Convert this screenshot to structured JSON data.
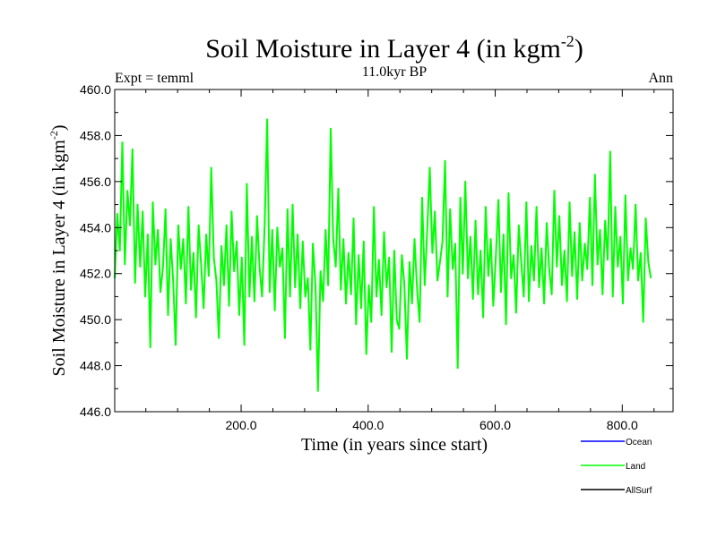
{
  "chart_data": {
    "type": "line",
    "title": "Soil Moisture in Layer 4 (in kgm",
    "title_sup": "-2",
    "title_end": ")",
    "subtitle": "11.0kyr BP",
    "left_label": "Expt = temml",
    "right_label": "Ann",
    "xlabel": "Time (in years since start)",
    "ylabel": "Soil Moisture in Layer 4 (in kgm",
    "ylabel_sup": "-2",
    "ylabel_end": ")",
    "xlim": [
      1,
      880
    ],
    "ylim": [
      446.0,
      460.0
    ],
    "x_ticks": [
      200,
      400,
      600,
      800
    ],
    "x_tick_labels": [
      "200.0",
      "400.0",
      "600.0",
      "800.0"
    ],
    "y_ticks": [
      446,
      448,
      450,
      452,
      454,
      456,
      458,
      460
    ],
    "y_tick_labels": [
      "446.0",
      "448.0",
      "450.0",
      "452.0",
      "454.0",
      "456.0",
      "458.0",
      "460.0"
    ],
    "legend": [
      {
        "name": "Ocean",
        "color": "#0000ff"
      },
      {
        "name": "Land",
        "color": "#00ff00"
      },
      {
        "name": "AllSurf",
        "color": "#000000"
      }
    ],
    "series": [
      {
        "name": "Land",
        "color": "#00ff00",
        "x_start": 1,
        "x_step": 4,
        "values": [
          451.8,
          454.6,
          453.0,
          457.7,
          452.4,
          455.6,
          454.1,
          457.4,
          451.6,
          455.0,
          452.3,
          454.7,
          451.0,
          453.7,
          448.8,
          455.1,
          452.4,
          453.9,
          451.2,
          452.3,
          454.8,
          450.2,
          453.5,
          451.7,
          448.9,
          454.1,
          452.2,
          453.5,
          450.7,
          454.9,
          451.3,
          452.9,
          450.1,
          454.1,
          452.4,
          450.5,
          453.7,
          451.9,
          456.6,
          452.7,
          451.7,
          449.2,
          453.2,
          451.5,
          454.1,
          450.6,
          454.7,
          452.1,
          453.4,
          450.2,
          452.7,
          448.9,
          455.9,
          451.0,
          453.6,
          450.8,
          454.5,
          452.3,
          451.0,
          454.1,
          458.7,
          451.2,
          453.9,
          450.4,
          454.0,
          452.3,
          453.1,
          449.2,
          454.8,
          451.0,
          455.0,
          451.4,
          453.7,
          450.5,
          453.4,
          451.0,
          451.8,
          448.7,
          453.3,
          451.5,
          446.9,
          452.1,
          450.8,
          453.9,
          451.5,
          458.3,
          453.5,
          452.3,
          455.7,
          451.3,
          453.5,
          450.7,
          452.9,
          451.1,
          454.4,
          449.8,
          452.8,
          450.5,
          453.4,
          448.5,
          451.5,
          449.9,
          454.9,
          451.0,
          452.6,
          450.2,
          453.8,
          451.4,
          452.7,
          448.6,
          453.0,
          450.0,
          449.6,
          452.8,
          451.5,
          448.3,
          452.5,
          450.7,
          453.5,
          451.3,
          449.9,
          455.3,
          451.5,
          453.9,
          456.6,
          452.9,
          454.7,
          451.7,
          452.5,
          453.4,
          456.9,
          451.0,
          454.8,
          452.2,
          453.3,
          447.9,
          455.3,
          452.0,
          456.0,
          451.8,
          453.6,
          450.9,
          454.3,
          451.1,
          453.0,
          450.1,
          454.9,
          451.9,
          453.5,
          450.6,
          452.8,
          455.2,
          451.2,
          453.7,
          449.8,
          455.5,
          451.8,
          452.8,
          450.3,
          454.1,
          452.5,
          451.0,
          455.1,
          450.8,
          453.2,
          451.7,
          454.9,
          451.4,
          453.1,
          450.7,
          454.2,
          452.2,
          451.1,
          455.6,
          452.3,
          454.5,
          451.5,
          453.0,
          450.8,
          455.1,
          451.9,
          453.8,
          450.9,
          454.2,
          451.7,
          453.3,
          452.2,
          455.3,
          451.5,
          456.3,
          452.4,
          453.9,
          451.1,
          454.3,
          452.6,
          457.3,
          451.0,
          454.9,
          452.3,
          453.6,
          450.7,
          455.4,
          451.7,
          453.1,
          452.2,
          455.0,
          451.7,
          452.9,
          449.9,
          454.4,
          452.5,
          451.8
        ]
      }
    ]
  }
}
